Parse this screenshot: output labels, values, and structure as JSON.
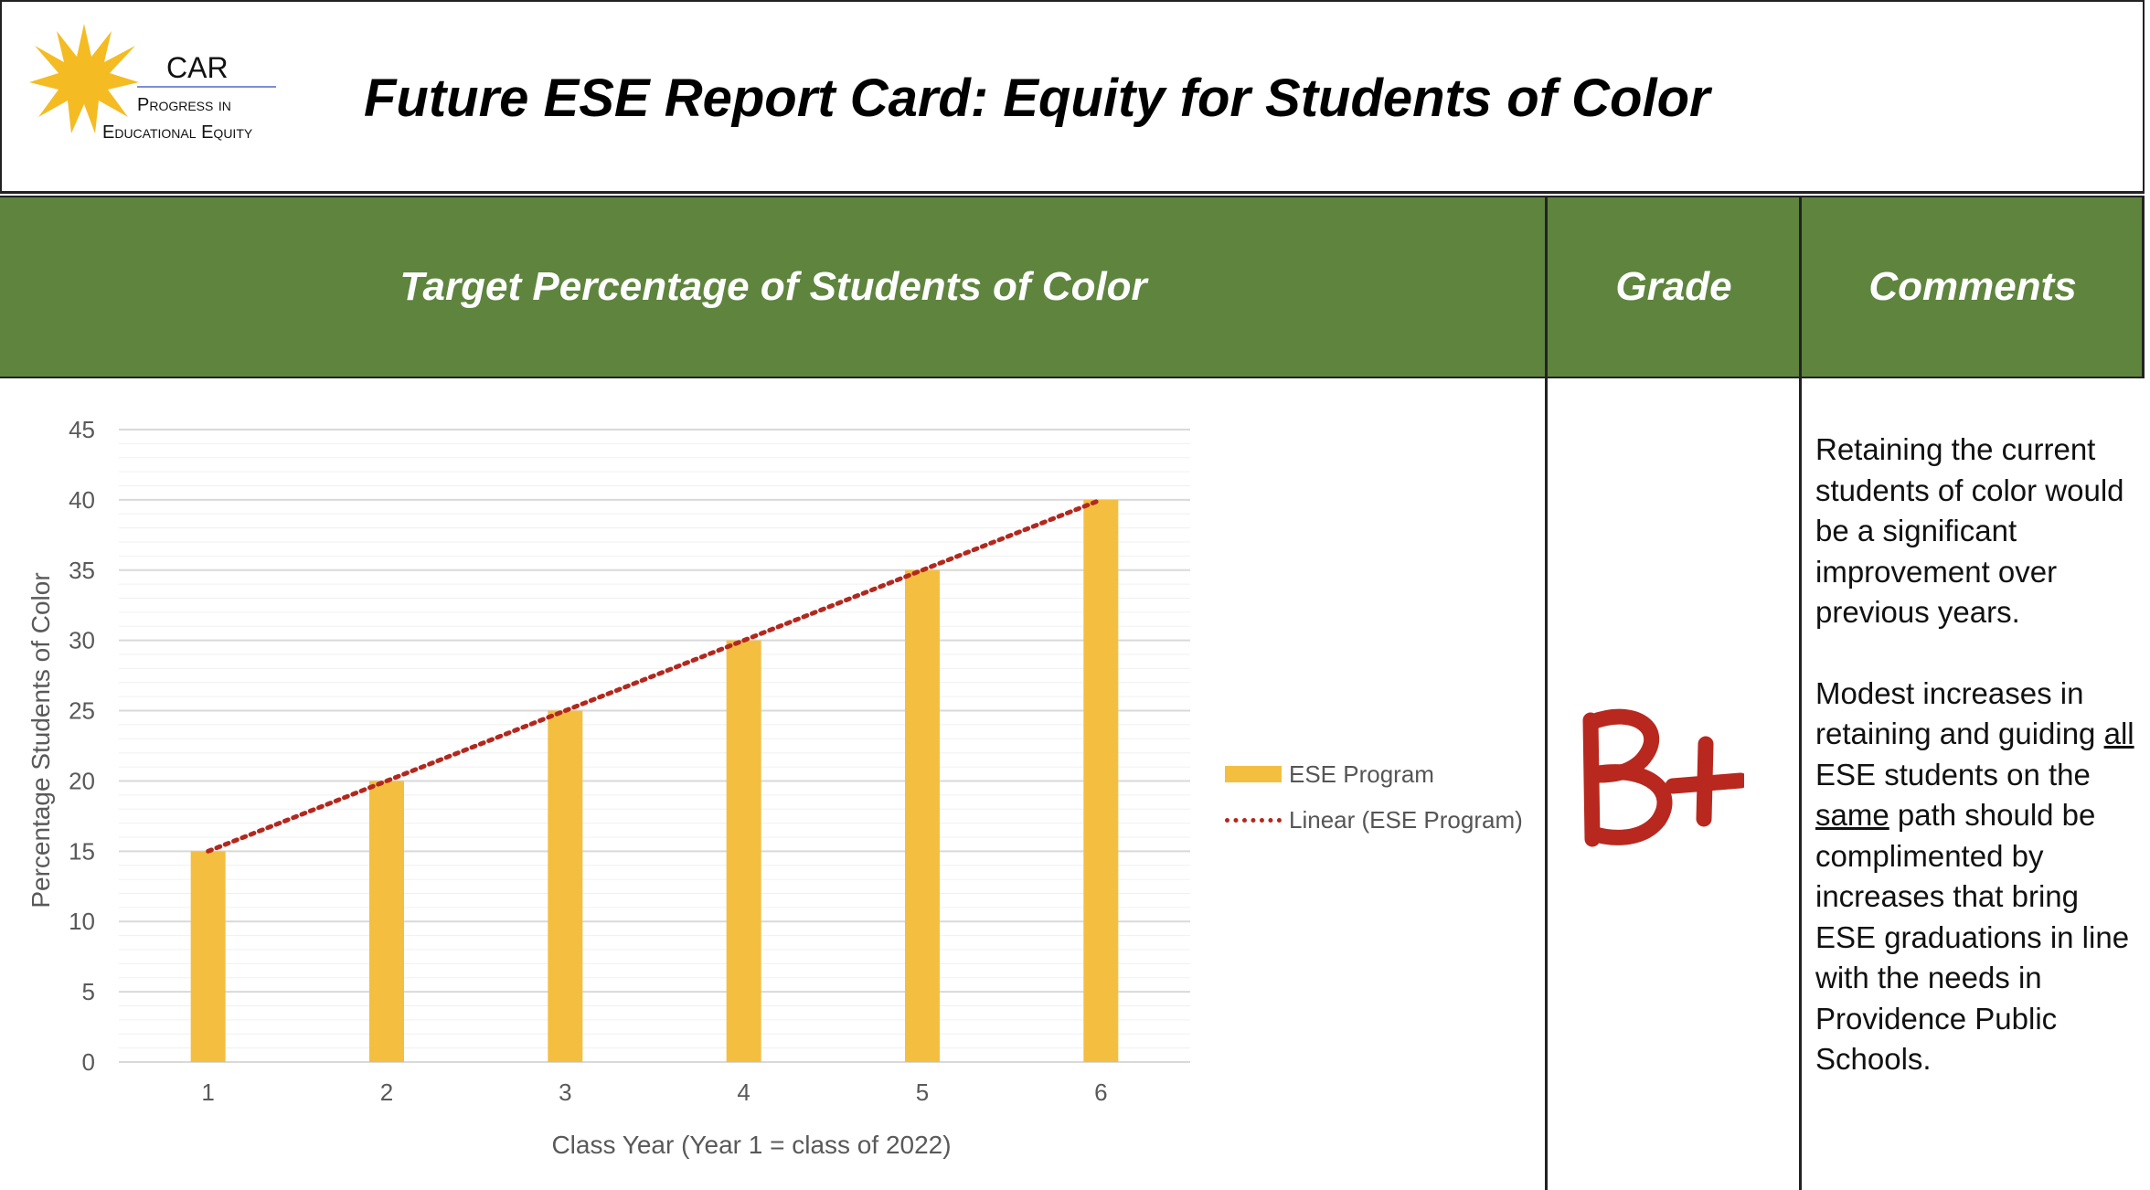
{
  "logo": {
    "name": "CAR",
    "line1": "Progress in",
    "line2": "Educational Equity"
  },
  "header": {
    "title": "Future ESE Report Card: Equity for Students of Color"
  },
  "columns": {
    "target": "Target Percentage of Students of Color",
    "grade": "Grade",
    "comments": "Comments"
  },
  "grade": {
    "value": "B+",
    "color": "#b8281f"
  },
  "comments": {
    "para1": "Retaining the current students of color would be a significant improvement over previous years.",
    "para2_part1": "Modest increases in retaining and guiding ",
    "para2_all": "all",
    "para2_part2": " ESE students on the ",
    "para2_same": "same",
    "para2_part3": " path should be complimented by increases that bring ESE graduations in line with the needs in Providence Public Schools."
  },
  "colors": {
    "header_green": "#5e843e",
    "bar": "#f4bf40",
    "trend": "#b2281e"
  },
  "chart_data": {
    "type": "bar",
    "categories": [
      "1",
      "2",
      "3",
      "4",
      "5",
      "6"
    ],
    "series": [
      {
        "name": "ESE Program",
        "values": [
          15,
          20,
          25,
          30,
          35,
          40
        ]
      }
    ],
    "trendline": {
      "name": "Linear (ESE Program)",
      "style": "dotted"
    },
    "xlabel": "Class Year (Year 1 = class of 2022)",
    "ylabel": "Percentage Students of Color",
    "ylim": [
      0,
      45
    ],
    "yticks": [
      0,
      5,
      10,
      15,
      20,
      25,
      30,
      35,
      40,
      45
    ],
    "grid": true,
    "legend": "right"
  }
}
